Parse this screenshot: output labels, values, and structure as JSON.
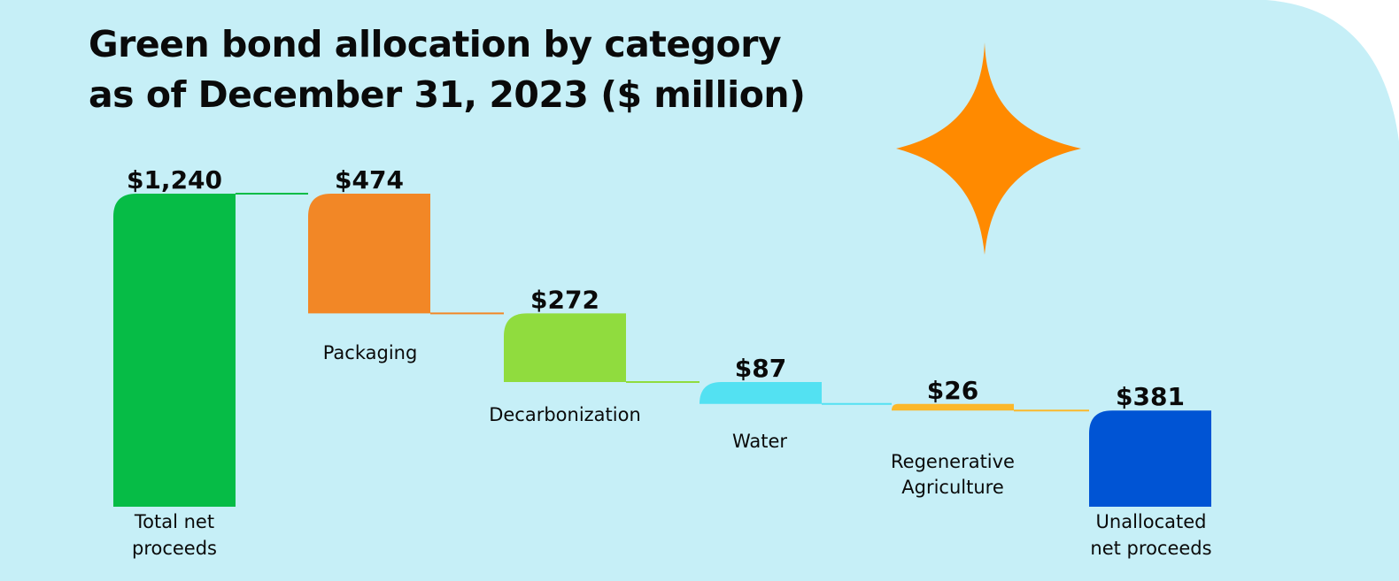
{
  "colors": {
    "background": "#c6eff7",
    "star": "#ff8a00"
  },
  "header": {
    "title_line1": "Green bond allocation by category",
    "title_line2": "as of December 31, 2023 ($ million)"
  },
  "chart_data": {
    "type": "bar",
    "subtype": "waterfall",
    "title": "Green bond allocation by category as of December 31, 2023 ($ million)",
    "unit": "$ million",
    "categories": [
      "Total net proceeds",
      "Packaging",
      "Decarbonization",
      "Water",
      "Regenerative Agriculture",
      "Unallocated net proceeds"
    ],
    "values": [
      1240,
      474,
      272,
      87,
      26,
      381
    ],
    "value_labels": [
      "$1,240",
      "$474",
      "$272",
      "$87",
      "$26",
      "$381"
    ],
    "category_label_lines": [
      [
        "Total net",
        "proceeds"
      ],
      [
        "Packaging"
      ],
      [
        "Decarbonization"
      ],
      [
        "Water"
      ],
      [
        "Regenerative",
        "Agriculture"
      ],
      [
        "Unallocated",
        "net proceeds"
      ]
    ],
    "colors": [
      "#06bc46",
      "#f28726",
      "#90dc3e",
      "#53e1f2",
      "#fbb82b",
      "#0054d4"
    ],
    "bar_kind": [
      "total",
      "decrease",
      "decrease",
      "decrease",
      "decrease",
      "total"
    ],
    "ylim": [
      0,
      1240
    ],
    "grid": false,
    "legend": "none"
  }
}
